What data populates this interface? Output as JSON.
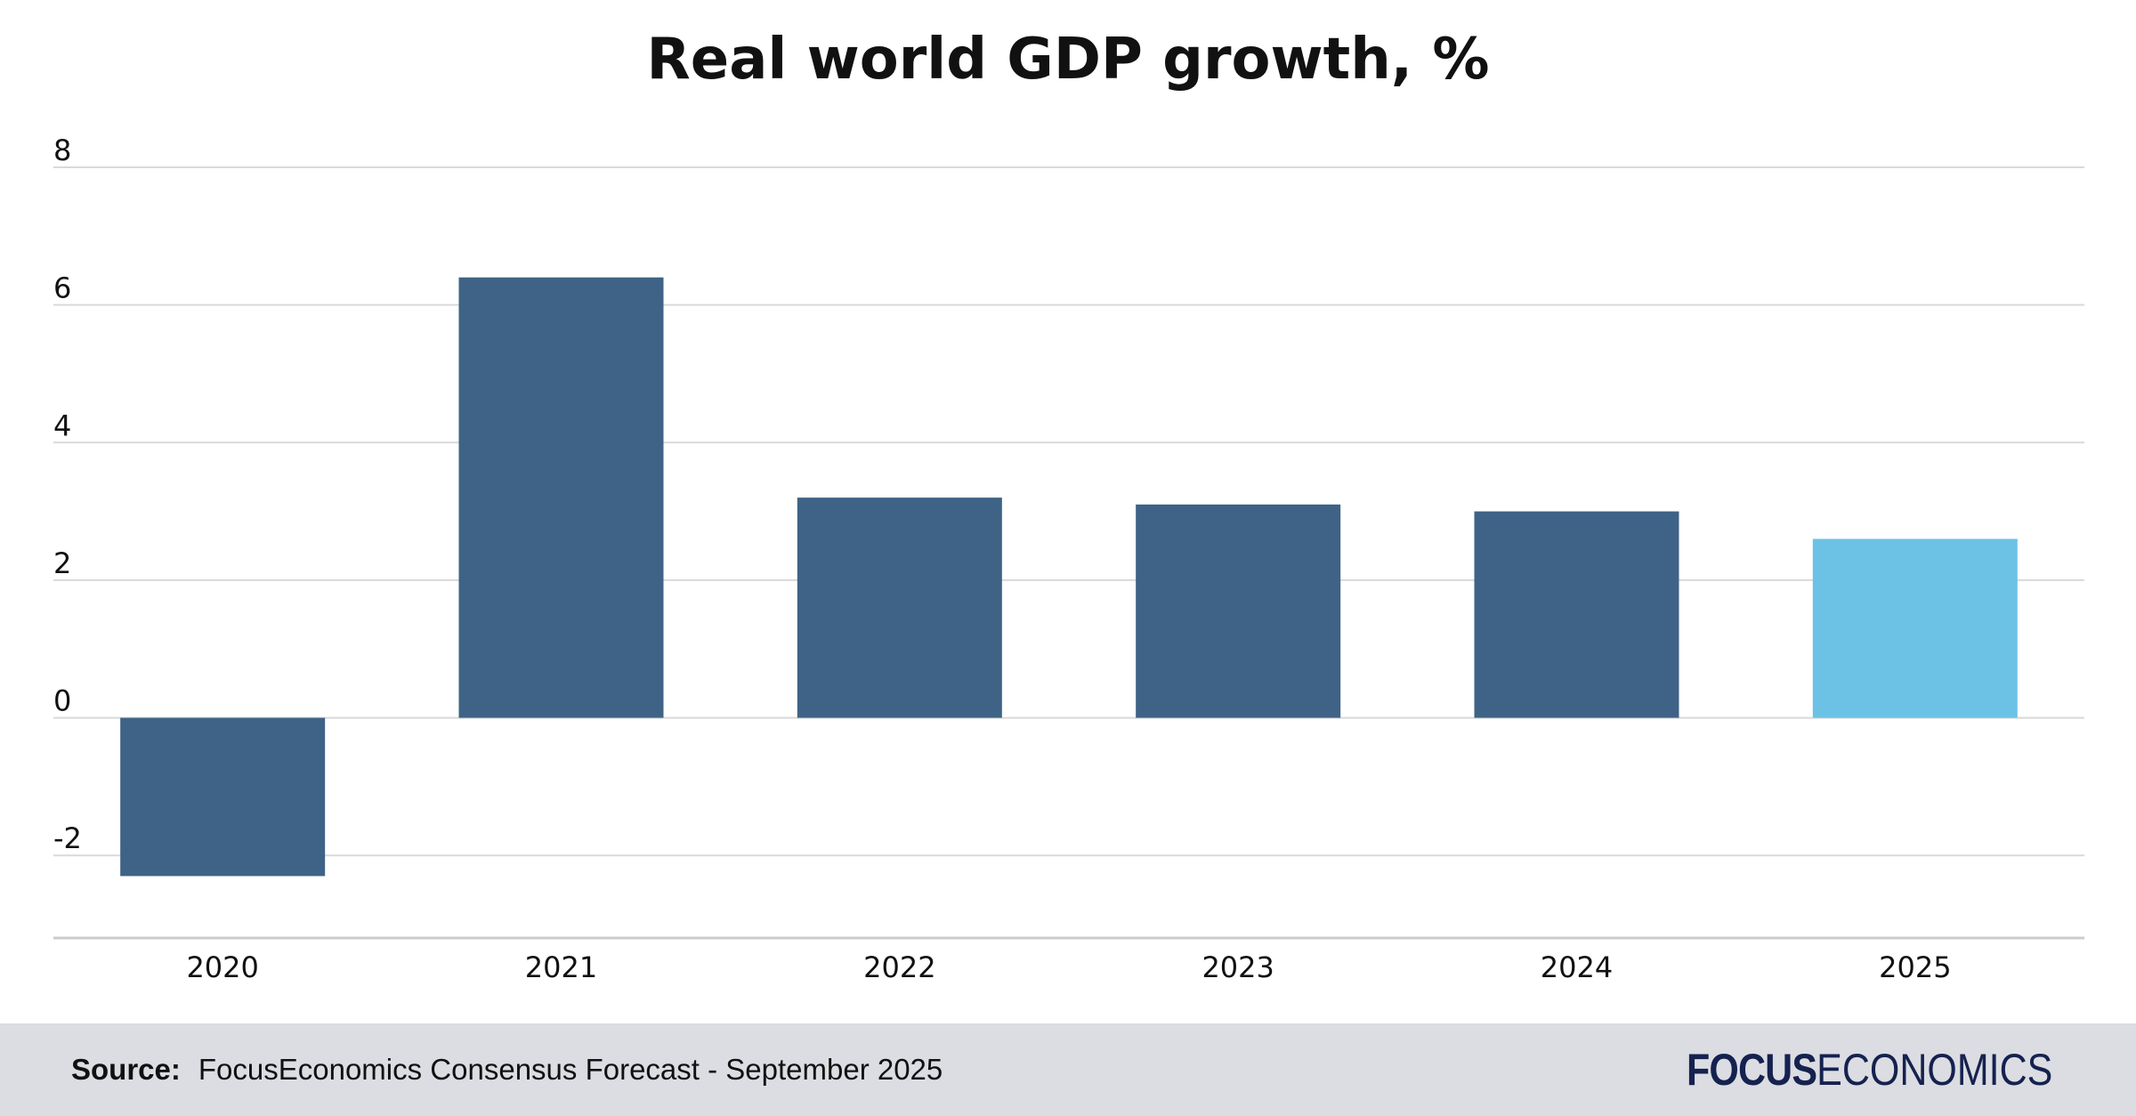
{
  "chart_data": {
    "type": "bar",
    "title": "Real world GDP growth, %",
    "categories": [
      "2020",
      "2021",
      "2022",
      "2023",
      "2024",
      "2025"
    ],
    "values": [
      -2.3,
      6.4,
      3.2,
      3.1,
      3.0,
      2.6
    ],
    "bar_colors": [
      "#3e6386",
      "#3e6386",
      "#3e6386",
      "#3e6386",
      "#3e6386",
      "#6cc2e5"
    ],
    "ylim": [
      -3.2,
      8
    ],
    "yticks": [
      -2,
      0,
      2,
      4,
      6,
      8
    ],
    "grid": true,
    "legend": "none"
  },
  "footer": {
    "source_label": "Source:",
    "source_text": "FocusEconomics Consensus Forecast - September 2025",
    "logo_bold": "FOCUS",
    "logo_light": "ECONOMICS"
  },
  "colors": {
    "bar": "#3e6386",
    "forecast_bar": "#6cc2e5",
    "grid": "#d9d9d9",
    "footer_bg": "#dcdde2",
    "logo": "#15224f"
  }
}
